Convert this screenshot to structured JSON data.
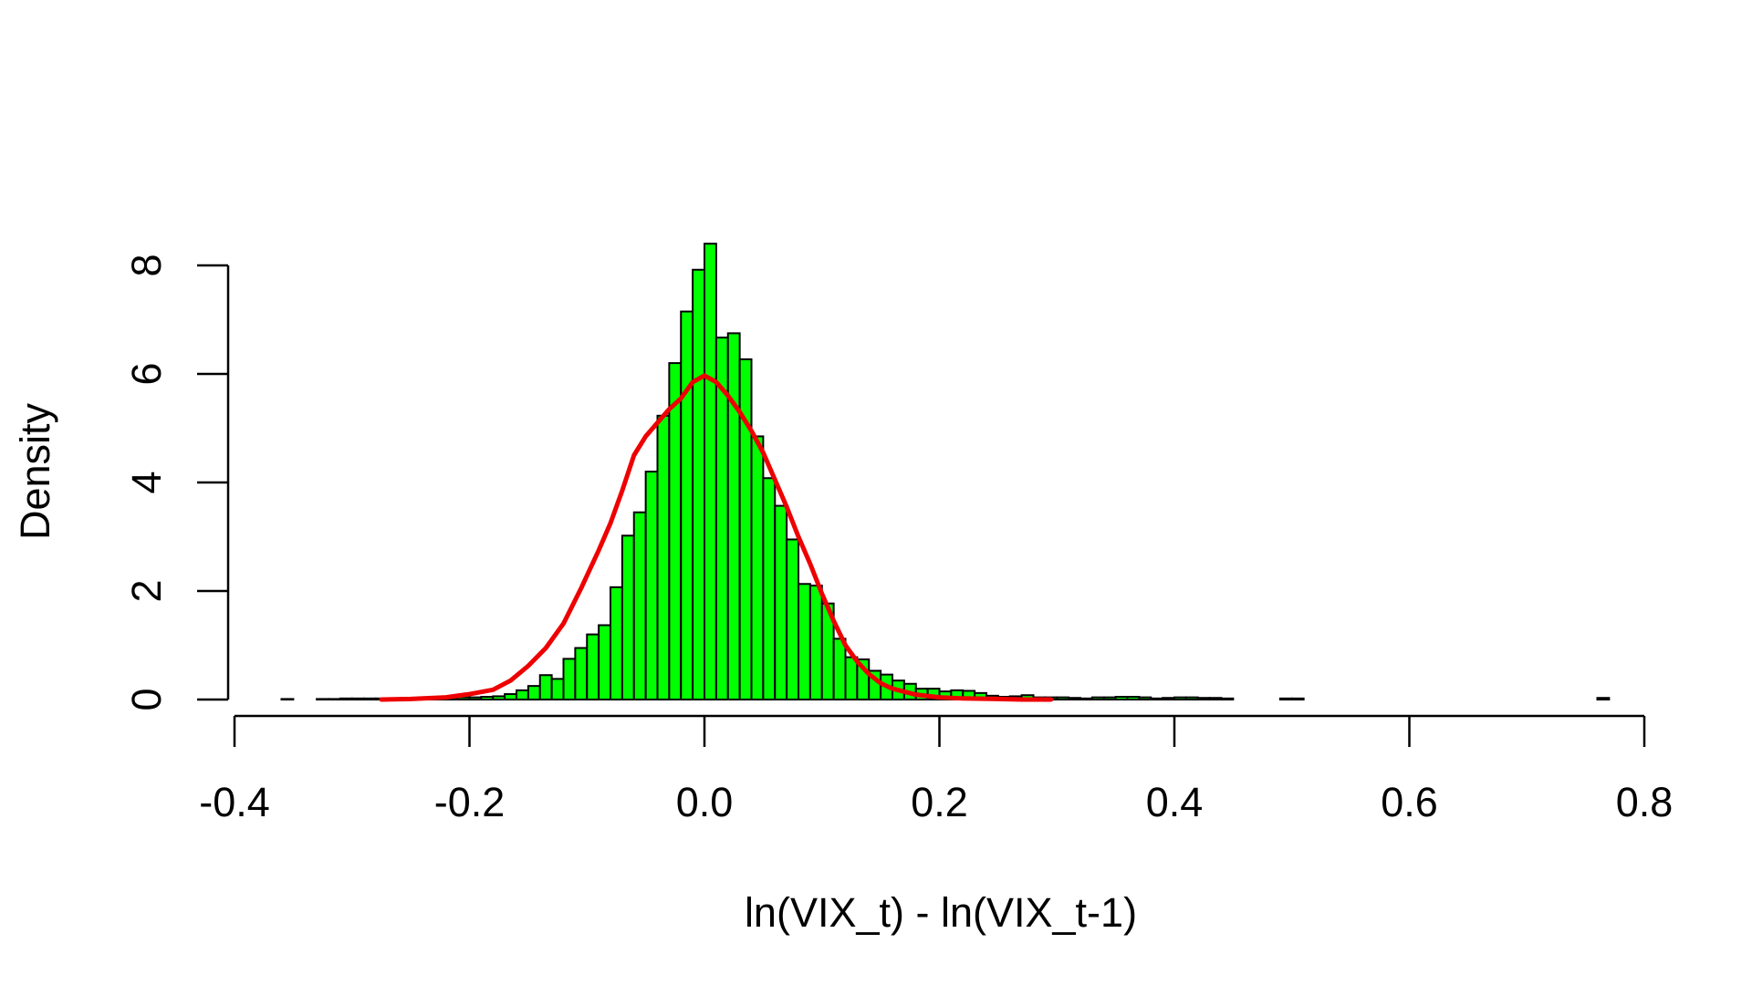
{
  "chart_data": {
    "type": "bar",
    "title": "",
    "xlabel": "ln(VIX_t) - ln(VIX_t-1)",
    "ylabel": "Density",
    "xlim": [
      -0.4,
      0.8
    ],
    "ylim": [
      0,
      8
    ],
    "x_ticks": [
      -0.4,
      -0.2,
      0.0,
      0.2,
      0.4,
      0.6,
      0.8
    ],
    "x_tick_labels": [
      "-0.4",
      "-0.2",
      "0.0",
      "0.2",
      "0.4",
      "0.6",
      "0.8"
    ],
    "y_ticks": [
      0,
      2,
      4,
      6,
      8
    ],
    "y_tick_labels": [
      "0",
      "2",
      "4",
      "6",
      "8"
    ],
    "grid": false,
    "legend": false,
    "histogram": {
      "bin_width": 0.01,
      "fill_color": "#00FF00",
      "edge_color": "#000000",
      "bins": [
        [
          -0.36,
          0.01
        ],
        [
          -0.33,
          0.01
        ],
        [
          -0.32,
          0.01
        ],
        [
          -0.31,
          0.02
        ],
        [
          -0.3,
          0.02
        ],
        [
          -0.29,
          0.02
        ],
        [
          -0.28,
          0.02
        ],
        [
          -0.27,
          0.01
        ],
        [
          -0.26,
          0.01
        ],
        [
          -0.25,
          0.02
        ],
        [
          -0.24,
          0.02
        ],
        [
          -0.23,
          0.02
        ],
        [
          -0.22,
          0.03
        ],
        [
          -0.21,
          0.04
        ],
        [
          -0.2,
          0.04
        ],
        [
          -0.19,
          0.05
        ],
        [
          -0.18,
          0.06
        ],
        [
          -0.17,
          0.1
        ],
        [
          -0.16,
          0.17
        ],
        [
          -0.15,
          0.25
        ],
        [
          -0.14,
          0.45
        ],
        [
          -0.13,
          0.38
        ],
        [
          -0.12,
          0.75
        ],
        [
          -0.11,
          0.95
        ],
        [
          -0.1,
          1.2
        ],
        [
          -0.09,
          1.37
        ],
        [
          -0.08,
          2.07
        ],
        [
          -0.07,
          3.02
        ],
        [
          -0.06,
          3.45
        ],
        [
          -0.05,
          4.2
        ],
        [
          -0.04,
          5.23
        ],
        [
          -0.03,
          6.2
        ],
        [
          -0.02,
          7.15
        ],
        [
          -0.01,
          7.92
        ],
        [
          0.0,
          8.4
        ],
        [
          0.01,
          6.67
        ],
        [
          0.02,
          6.75
        ],
        [
          0.03,
          6.27
        ],
        [
          0.04,
          4.85
        ],
        [
          0.05,
          4.08
        ],
        [
          0.06,
          3.57
        ],
        [
          0.07,
          2.95
        ],
        [
          0.08,
          2.13
        ],
        [
          0.09,
          2.1
        ],
        [
          0.1,
          1.77
        ],
        [
          0.11,
          1.12
        ],
        [
          0.12,
          0.78
        ],
        [
          0.13,
          0.74
        ],
        [
          0.14,
          0.53
        ],
        [
          0.15,
          0.46
        ],
        [
          0.16,
          0.35
        ],
        [
          0.17,
          0.29
        ],
        [
          0.18,
          0.2
        ],
        [
          0.19,
          0.2
        ],
        [
          0.2,
          0.15
        ],
        [
          0.21,
          0.17
        ],
        [
          0.22,
          0.16
        ],
        [
          0.23,
          0.12
        ],
        [
          0.24,
          0.07
        ],
        [
          0.25,
          0.05
        ],
        [
          0.26,
          0.06
        ],
        [
          0.27,
          0.08
        ],
        [
          0.28,
          0.04
        ],
        [
          0.29,
          0.04
        ],
        [
          0.3,
          0.04
        ],
        [
          0.31,
          0.03
        ],
        [
          0.32,
          0.02
        ],
        [
          0.33,
          0.04
        ],
        [
          0.34,
          0.04
        ],
        [
          0.35,
          0.05
        ],
        [
          0.36,
          0.05
        ],
        [
          0.37,
          0.04
        ],
        [
          0.38,
          0.02
        ],
        [
          0.39,
          0.03
        ],
        [
          0.4,
          0.04
        ],
        [
          0.41,
          0.04
        ],
        [
          0.42,
          0.03
        ],
        [
          0.43,
          0.03
        ],
        [
          0.44,
          0.02
        ],
        [
          0.49,
          0.02
        ],
        [
          0.5,
          0.02
        ],
        [
          0.76,
          0.03
        ]
      ]
    },
    "series": [
      {
        "type": "line",
        "color": "#EE0000",
        "x": [
          -0.275,
          -0.25,
          -0.22,
          -0.2,
          -0.18,
          -0.165,
          -0.15,
          -0.135,
          -0.12,
          -0.105,
          -0.09,
          -0.08,
          -0.07,
          -0.06,
          -0.05,
          -0.04,
          -0.03,
          -0.02,
          -0.01,
          0.0,
          0.01,
          0.02,
          0.03,
          0.04,
          0.05,
          0.06,
          0.07,
          0.08,
          0.09,
          0.1,
          0.11,
          0.12,
          0.13,
          0.14,
          0.15,
          0.16,
          0.18,
          0.2,
          0.22,
          0.25,
          0.27,
          0.295
        ],
        "values": [
          0.0,
          0.01,
          0.04,
          0.1,
          0.18,
          0.35,
          0.62,
          0.95,
          1.4,
          2.05,
          2.75,
          3.25,
          3.85,
          4.5,
          4.85,
          5.1,
          5.35,
          5.55,
          5.85,
          5.97,
          5.85,
          5.6,
          5.3,
          4.95,
          4.55,
          4.05,
          3.55,
          3.0,
          2.5,
          1.95,
          1.45,
          1.0,
          0.7,
          0.47,
          0.3,
          0.2,
          0.09,
          0.04,
          0.02,
          0.01,
          0.0,
          0.0
        ]
      }
    ]
  }
}
